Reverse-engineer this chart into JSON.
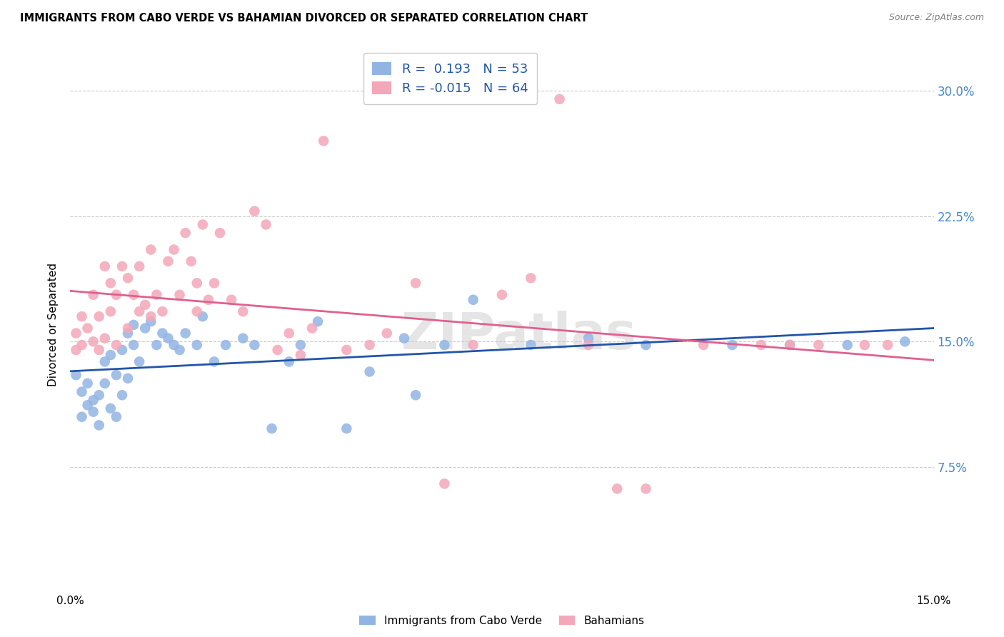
{
  "title": "IMMIGRANTS FROM CABO VERDE VS BAHAMIAN DIVORCED OR SEPARATED CORRELATION CHART",
  "source": "Source: ZipAtlas.com",
  "ylabel": "Divorced or Separated",
  "ytick_vals": [
    0.075,
    0.15,
    0.225,
    0.3
  ],
  "xlim": [
    0.0,
    0.15
  ],
  "ylim": [
    0.0,
    0.32
  ],
  "legend_blue_r": "0.193",
  "legend_blue_n": "53",
  "legend_pink_r": "-0.015",
  "legend_pink_n": "64",
  "color_blue": "#92b4e3",
  "color_pink": "#f4a7b9",
  "color_line_blue": "#2255aa",
  "color_line_pink": "#e06090",
  "watermark": "ZIPatlas",
  "blue_x": [
    0.001,
    0.002,
    0.002,
    0.003,
    0.003,
    0.004,
    0.004,
    0.005,
    0.005,
    0.006,
    0.006,
    0.007,
    0.007,
    0.008,
    0.008,
    0.009,
    0.009,
    0.01,
    0.01,
    0.011,
    0.011,
    0.012,
    0.013,
    0.014,
    0.015,
    0.016,
    0.017,
    0.018,
    0.019,
    0.02,
    0.022,
    0.023,
    0.025,
    0.027,
    0.03,
    0.032,
    0.035,
    0.038,
    0.04,
    0.043,
    0.048,
    0.052,
    0.058,
    0.06,
    0.065,
    0.07,
    0.08,
    0.09,
    0.1,
    0.115,
    0.125,
    0.135,
    0.145
  ],
  "blue_y": [
    0.13,
    0.12,
    0.105,
    0.125,
    0.112,
    0.115,
    0.108,
    0.118,
    0.1,
    0.125,
    0.138,
    0.11,
    0.142,
    0.105,
    0.13,
    0.118,
    0.145,
    0.128,
    0.155,
    0.148,
    0.16,
    0.138,
    0.158,
    0.162,
    0.148,
    0.155,
    0.152,
    0.148,
    0.145,
    0.155,
    0.148,
    0.165,
    0.138,
    0.148,
    0.152,
    0.148,
    0.098,
    0.138,
    0.148,
    0.162,
    0.098,
    0.132,
    0.152,
    0.118,
    0.148,
    0.175,
    0.148,
    0.152,
    0.148,
    0.148,
    0.148,
    0.148,
    0.15
  ],
  "pink_x": [
    0.001,
    0.001,
    0.002,
    0.002,
    0.003,
    0.004,
    0.004,
    0.005,
    0.005,
    0.006,
    0.006,
    0.007,
    0.007,
    0.008,
    0.008,
    0.009,
    0.01,
    0.01,
    0.011,
    0.012,
    0.012,
    0.013,
    0.014,
    0.014,
    0.015,
    0.016,
    0.017,
    0.018,
    0.019,
    0.02,
    0.021,
    0.022,
    0.022,
    0.023,
    0.024,
    0.025,
    0.026,
    0.028,
    0.03,
    0.032,
    0.034,
    0.036,
    0.038,
    0.04,
    0.042,
    0.044,
    0.048,
    0.052,
    0.055,
    0.06,
    0.065,
    0.07,
    0.075,
    0.08,
    0.085,
    0.09,
    0.095,
    0.1,
    0.11,
    0.12,
    0.125,
    0.13,
    0.138,
    0.142
  ],
  "pink_y": [
    0.145,
    0.155,
    0.148,
    0.165,
    0.158,
    0.15,
    0.178,
    0.145,
    0.165,
    0.152,
    0.195,
    0.168,
    0.185,
    0.178,
    0.148,
    0.195,
    0.158,
    0.188,
    0.178,
    0.168,
    0.195,
    0.172,
    0.205,
    0.165,
    0.178,
    0.168,
    0.198,
    0.205,
    0.178,
    0.215,
    0.198,
    0.168,
    0.185,
    0.22,
    0.175,
    0.185,
    0.215,
    0.175,
    0.168,
    0.228,
    0.22,
    0.145,
    0.155,
    0.142,
    0.158,
    0.27,
    0.145,
    0.148,
    0.155,
    0.185,
    0.065,
    0.148,
    0.178,
    0.188,
    0.295,
    0.148,
    0.062,
    0.062,
    0.148,
    0.148,
    0.148,
    0.148,
    0.148,
    0.148
  ]
}
